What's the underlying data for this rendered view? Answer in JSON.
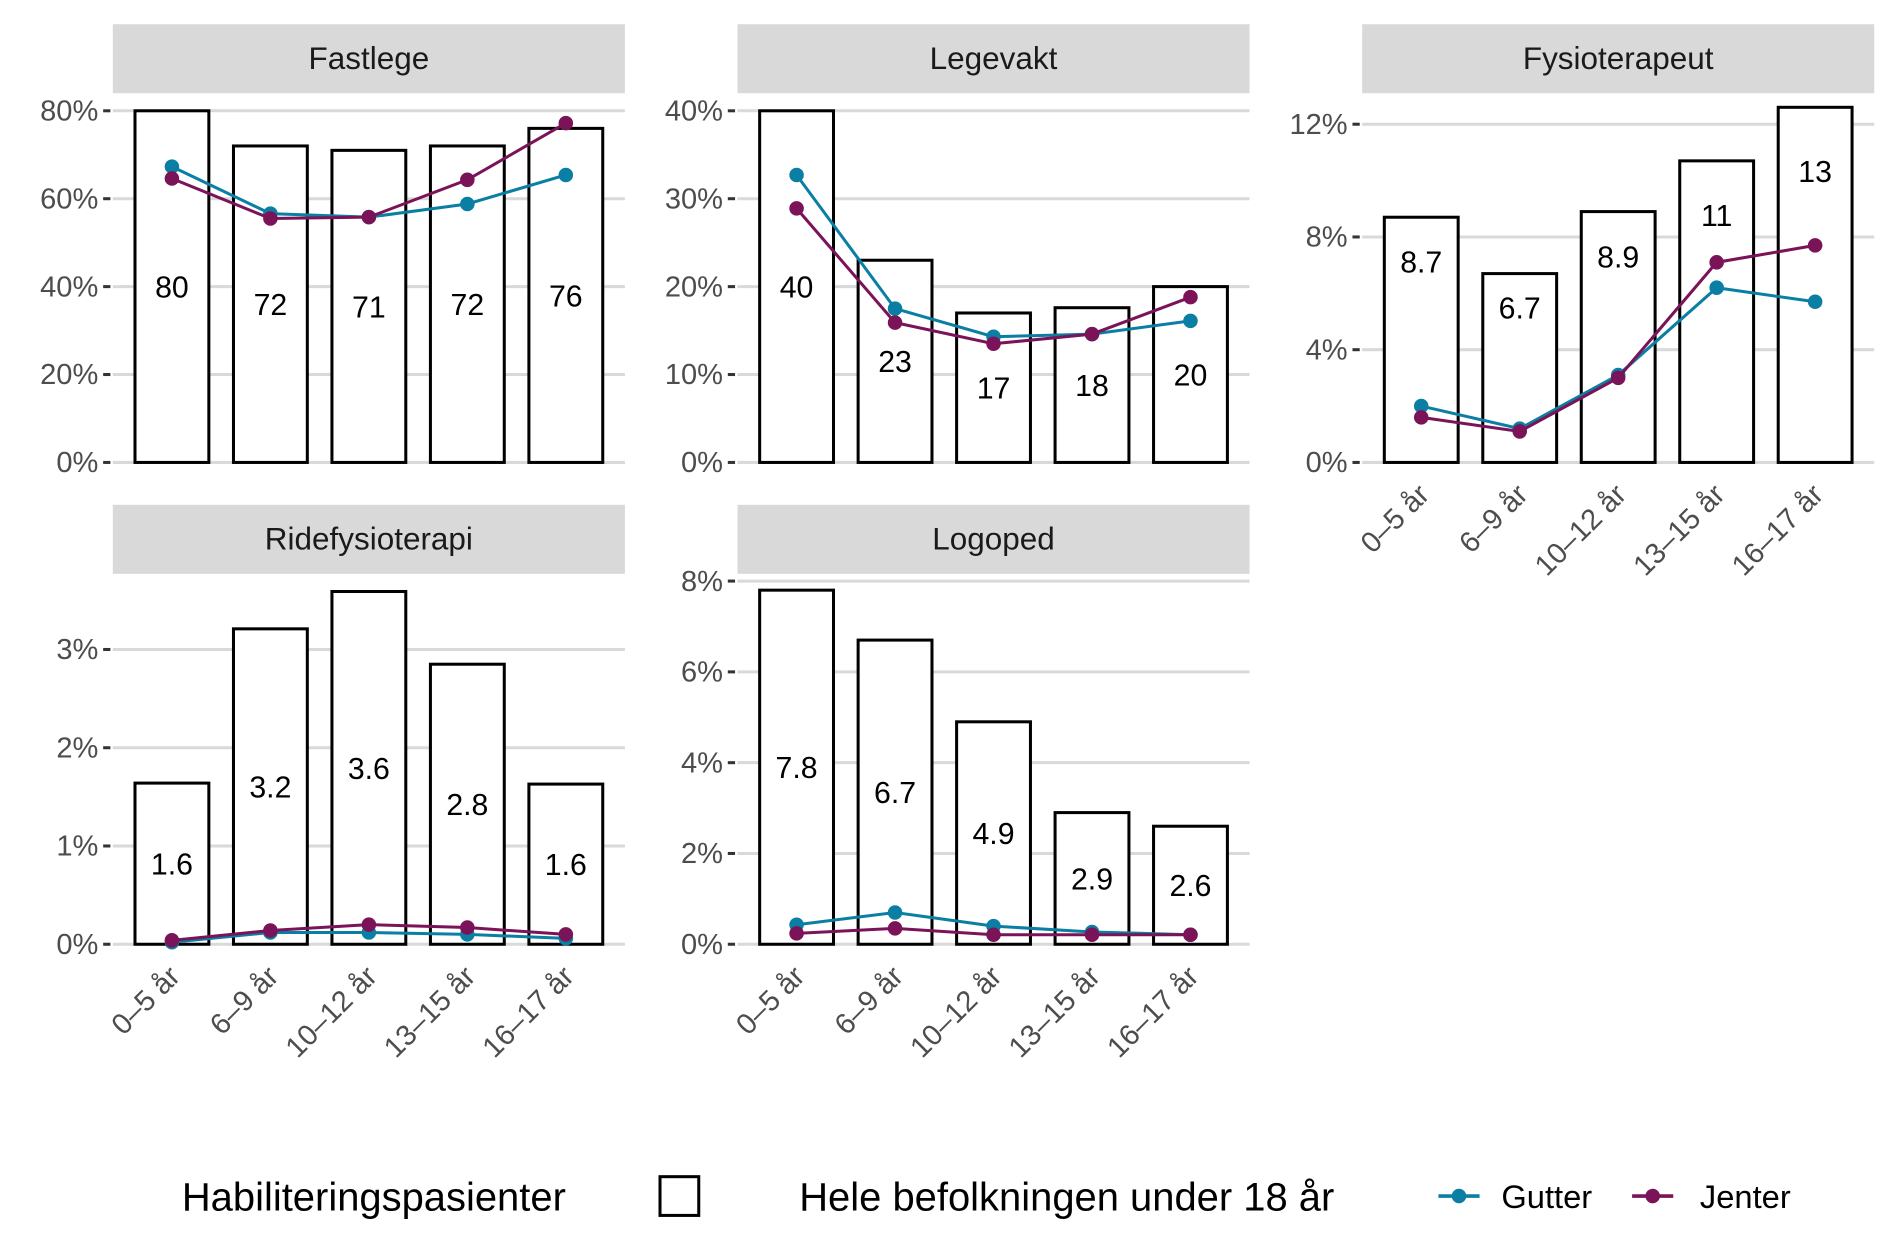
{
  "chart_data": [
    {
      "type": "bar+line",
      "title": "Fastlege",
      "categories": [
        "0–5 år",
        "6–9 år",
        "10–12 år",
        "13–15 år",
        "16–17 år"
      ],
      "bar_values": [
        80,
        72,
        71,
        72,
        76
      ],
      "bar_labels": [
        "80",
        "72",
        "71",
        "72",
        "76"
      ],
      "series": [
        {
          "name": "Gutter",
          "values": [
            67.3,
            56.6,
            55.8,
            58.8,
            65.4
          ]
        },
        {
          "name": "Jenter",
          "values": [
            64.6,
            55.5,
            55.8,
            64.3,
            77.2
          ]
        }
      ],
      "yticks": [
        0,
        20,
        40,
        60,
        80
      ],
      "ytick_labels": [
        "0%",
        "20%",
        "40%",
        "60%",
        "80%"
      ],
      "ylim": [
        0,
        84
      ],
      "show_xlabels": false
    },
    {
      "type": "bar+line",
      "title": "Legevakt",
      "categories": [
        "0–5 år",
        "6–9 år",
        "10–12 år",
        "13–15 år",
        "16–17 år"
      ],
      "bar_values": [
        40,
        23,
        17,
        17.6,
        20
      ],
      "bar_labels": [
        "40",
        "23",
        "17",
        "18",
        "20"
      ],
      "series": [
        {
          "name": "Gutter",
          "values": [
            32.7,
            17.5,
            14.3,
            14.6,
            16.1
          ]
        },
        {
          "name": "Jenter",
          "values": [
            28.9,
            15.9,
            13.5,
            14.6,
            18.8
          ]
        }
      ],
      "yticks": [
        0,
        10,
        20,
        30,
        40
      ],
      "ytick_labels": [
        "0%",
        "10%",
        "20%",
        "30%",
        "40%"
      ],
      "ylim": [
        0,
        42
      ],
      "show_xlabels": false
    },
    {
      "type": "bar+line",
      "title": "Fysioterapeut",
      "categories": [
        "0–5 år",
        "6–9 år",
        "10–12 år",
        "13–15 år",
        "16–17 år"
      ],
      "bar_values": [
        8.7,
        6.7,
        8.9,
        10.7,
        12.6
      ],
      "bar_labels": [
        "8.7",
        "6.7",
        "8.9",
        "11",
        "13"
      ],
      "series": [
        {
          "name": "Gutter",
          "values": [
            2.0,
            1.2,
            3.1,
            6.2,
            5.7
          ]
        },
        {
          "name": "Jenter",
          "values": [
            1.6,
            1.1,
            3.0,
            7.1,
            7.7
          ]
        }
      ],
      "yticks": [
        0,
        4,
        8,
        12
      ],
      "ytick_labels": [
        "0%",
        "4%",
        "8%",
        "12%"
      ],
      "ylim": [
        0,
        13.1
      ],
      "show_xlabels": true
    },
    {
      "type": "bar+line",
      "title": "Ridefysioterapi",
      "categories": [
        "0–5 år",
        "6–9 år",
        "10–12 år",
        "13–15 år",
        "16–17 år"
      ],
      "bar_values": [
        1.64,
        3.21,
        3.59,
        2.85,
        1.63
      ],
      "bar_labels": [
        "1.6",
        "3.2",
        "3.6",
        "2.8",
        "1.6"
      ],
      "series": [
        {
          "name": "Gutter",
          "values": [
            0.02,
            0.12,
            0.12,
            0.1,
            0.06
          ]
        },
        {
          "name": "Jenter",
          "values": [
            0.04,
            0.14,
            0.2,
            0.17,
            0.1
          ]
        }
      ],
      "yticks": [
        0,
        1,
        2,
        3
      ],
      "ytick_labels": [
        "0%",
        "1%",
        "2%",
        "3%"
      ],
      "ylim": [
        0,
        3.77
      ],
      "show_xlabels": true
    },
    {
      "type": "bar+line",
      "title": "Logoped",
      "categories": [
        "0–5 år",
        "6–9 år",
        "10–12 år",
        "13–15 år",
        "16–17 år"
      ],
      "bar_values": [
        7.8,
        6.7,
        4.9,
        2.9,
        2.6
      ],
      "bar_labels": [
        "7.8",
        "6.7",
        "4.9",
        "2.9",
        "2.6"
      ],
      "series": [
        {
          "name": "Gutter",
          "values": [
            0.43,
            0.7,
            0.4,
            0.27,
            0.21
          ]
        },
        {
          "name": "Jenter",
          "values": [
            0.24,
            0.35,
            0.21,
            0.21,
            0.21
          ]
        }
      ],
      "yticks": [
        0,
        2,
        4,
        6,
        8
      ],
      "ytick_labels": [
        "0%",
        "2%",
        "4%",
        "6%",
        "8%"
      ],
      "ylim": [
        0,
        8.16
      ],
      "show_xlabels": true
    }
  ],
  "legend": {
    "bar_title": "Habiliteringspasienter",
    "line_title": "Hele befolkningen under 18 år",
    "items": [
      {
        "name": "Gutter",
        "color": "#0a7fa3"
      },
      {
        "name": "Jenter",
        "color": "#7b1359"
      }
    ],
    "placement": "bottom"
  },
  "colors": {
    "Gutter": "#0a7fa3",
    "Jenter": "#7b1359",
    "strip": "#d9d9d9",
    "grid": "#d9d9d9"
  },
  "grid": true
}
